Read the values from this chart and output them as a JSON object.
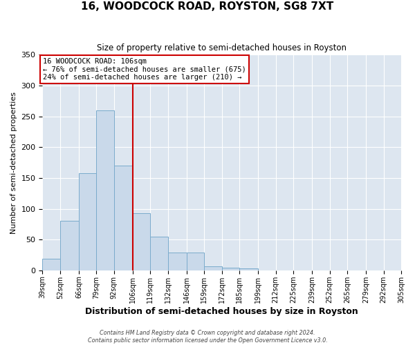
{
  "title": "16, WOODCOCK ROAD, ROYSTON, SG8 7XT",
  "subtitle": "Size of property relative to semi-detached houses in Royston",
  "xlabel": "Distribution of semi-detached houses by size in Royston",
  "ylabel": "Number of semi-detached properties",
  "bar_color": "#c9d9ea",
  "bar_edgecolor": "#7aabcc",
  "background_color": "#dde6f0",
  "grid_color": "#ffffff",
  "bin_labels": [
    "39sqm",
    "52sqm",
    "66sqm",
    "79sqm",
    "92sqm",
    "106sqm",
    "119sqm",
    "132sqm",
    "146sqm",
    "159sqm",
    "172sqm",
    "185sqm",
    "199sqm",
    "212sqm",
    "225sqm",
    "239sqm",
    "252sqm",
    "265sqm",
    "279sqm",
    "292sqm",
    "305sqm"
  ],
  "bin_edges": [
    39,
    52,
    66,
    79,
    92,
    106,
    119,
    132,
    146,
    159,
    172,
    185,
    199,
    212,
    225,
    239,
    252,
    265,
    279,
    292,
    305
  ],
  "bar_heights": [
    19,
    81,
    158,
    260,
    170,
    93,
    55,
    29,
    29,
    7,
    4,
    3,
    0,
    0,
    0,
    0,
    0,
    0,
    0,
    0
  ],
  "ylim": [
    0,
    350
  ],
  "yticks": [
    0,
    50,
    100,
    150,
    200,
    250,
    300,
    350
  ],
  "property_size": 106,
  "property_line_color": "#cc0000",
  "annotation_text": "16 WOODCOCK ROAD: 106sqm\n← 76% of semi-detached houses are smaller (675)\n24% of semi-detached houses are larger (210) →",
  "annotation_box_edgecolor": "#cc0000",
  "footer_line1": "Contains HM Land Registry data © Crown copyright and database right 2024.",
  "footer_line2": "Contains public sector information licensed under the Open Government Licence v3.0."
}
